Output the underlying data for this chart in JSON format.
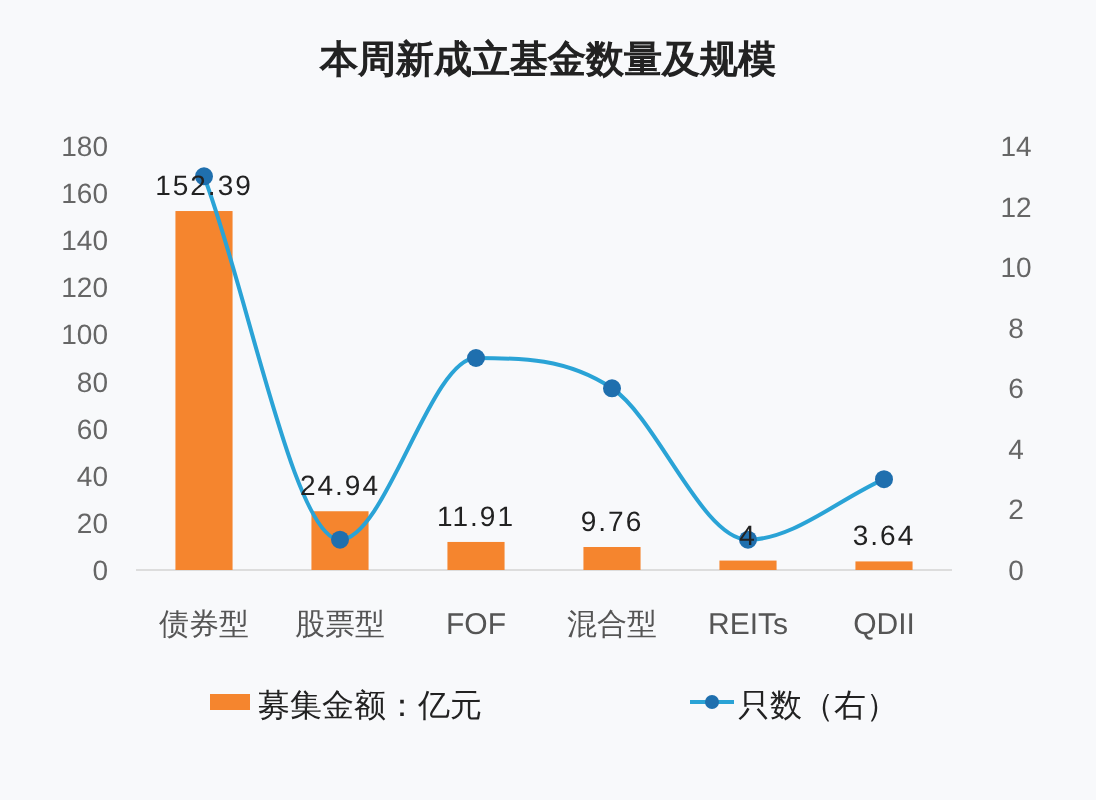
{
  "chart_data": {
    "type": "bar",
    "title": "本周新成立基金数量及规模",
    "categories": [
      "债券型",
      "股票型",
      "FOF",
      "混合型",
      "REITs",
      "QDII"
    ],
    "series": [
      {
        "name": "募集金额：亿元",
        "color": "#f5852e",
        "values": [
          152.39,
          24.94,
          11.91,
          9.76,
          4,
          3.64
        ],
        "value_labels": [
          "152.39",
          "24.94",
          "11.91",
          "9.76",
          "4",
          "3.64"
        ]
      },
      {
        "name": "只数（右）",
        "type": "line",
        "axis": "y2",
        "color": "#2aa3d6",
        "marker": "circle",
        "values": [
          13,
          1,
          7,
          6,
          1,
          3
        ]
      }
    ],
    "ylim": [
      0,
      180
    ],
    "yticks": [
      0,
      20,
      40,
      60,
      80,
      100,
      120,
      140,
      160,
      180
    ],
    "y2lim": [
      0,
      14
    ],
    "y2ticks": [
      0,
      2,
      4,
      6,
      8,
      10,
      12,
      14
    ],
    "legend": "bottom",
    "grid": false
  }
}
